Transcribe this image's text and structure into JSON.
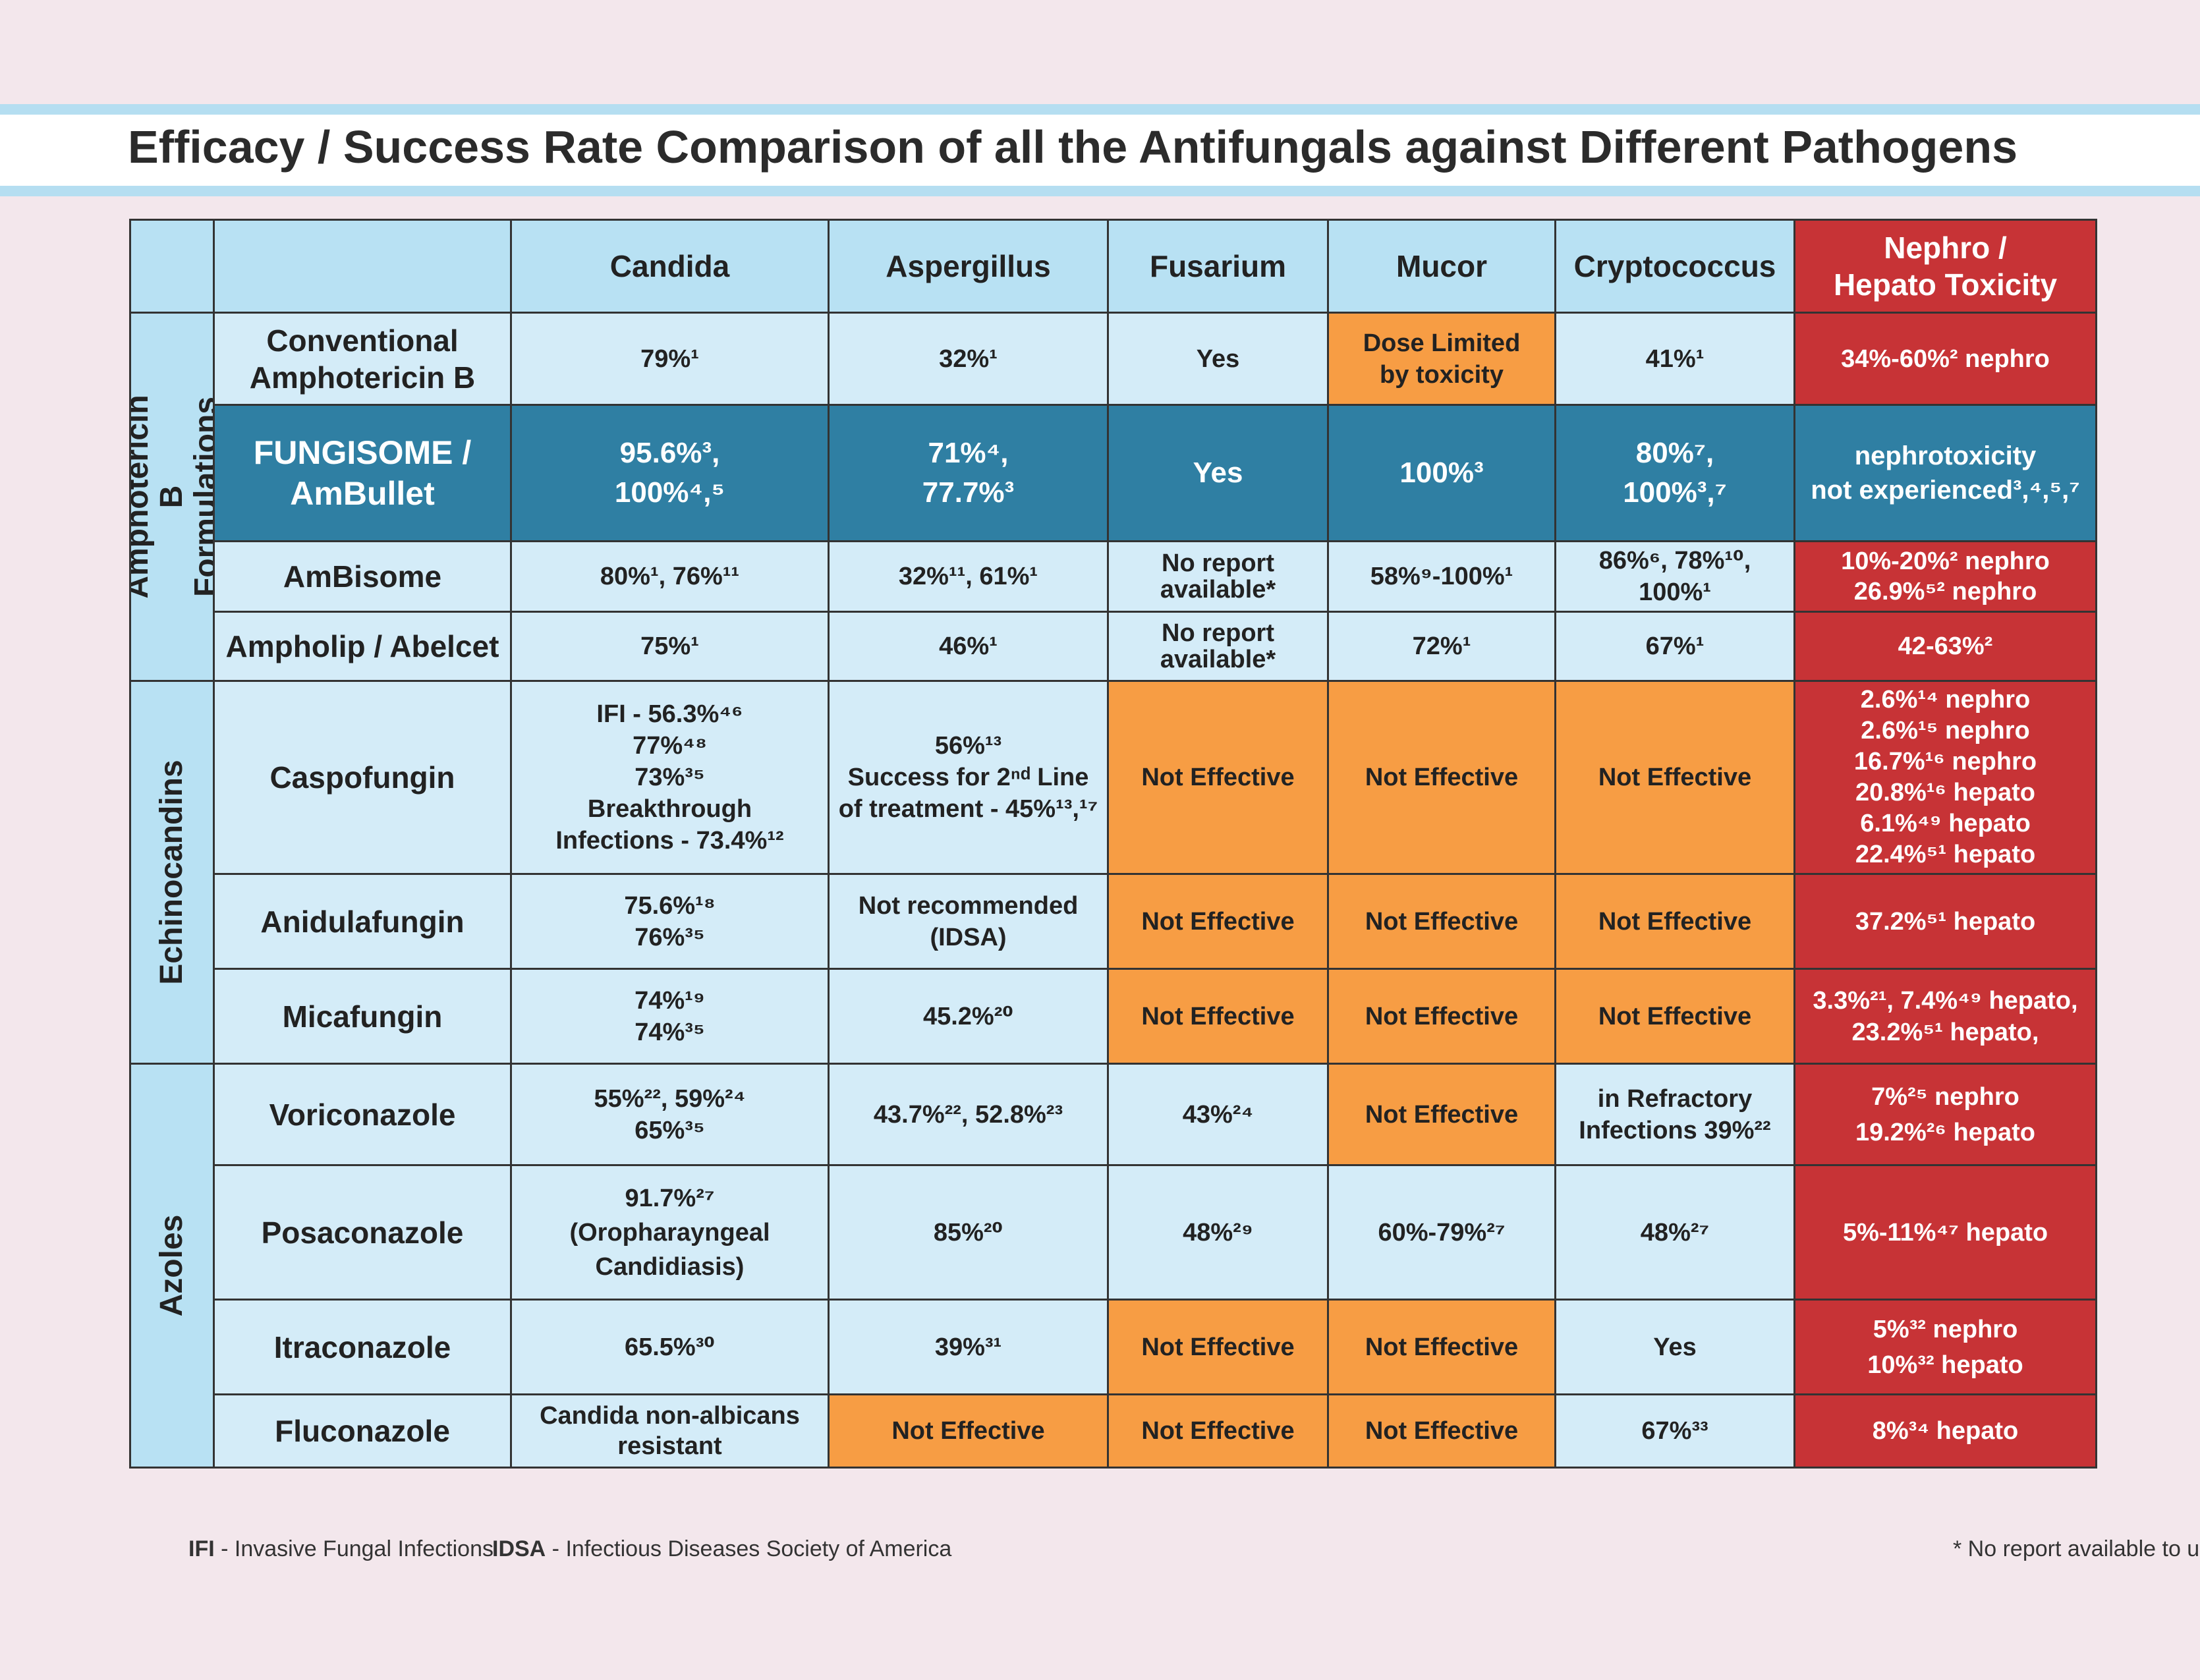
{
  "title": "Efficacy / Success Rate Comparison of all the Antifungals against Different Pathogens",
  "header": {
    "columns": [
      "Candida",
      "Aspergillus",
      "Fusarium",
      "Mucor",
      "Cryptococcus",
      "Nephro /\nHepato Toxicity"
    ]
  },
  "groups": {
    "ampho": "Amphotericin B\nFormulations",
    "echino": "Echinocandins",
    "azoles": "Azoles"
  },
  "rows": [
    {
      "drug": "Conventional\nAmphotericin B",
      "cells": [
        "79%¹",
        "32%¹",
        "Yes",
        "Dose Limited\nby toxicity",
        "41%¹",
        "34%-60%² nephro"
      ]
    },
    {
      "drug": "FUNGISOME /\nAmBullet",
      "cells": [
        "95.6%³,\n100%⁴,⁵",
        "71%⁴,\n77.7%³",
        "Yes",
        "100%³",
        "80%⁷,\n100%³,⁷",
        "nephrotoxicity\nnot experienced³,⁴,⁵,⁷"
      ]
    },
    {
      "drug": "AmBisome",
      "cells": [
        "80%¹, 76%¹¹",
        "32%¹¹, 61%¹",
        "No report\navailable*",
        "58%⁹-100%¹",
        "86%⁶, 78%¹⁰, 100%¹",
        "10%-20%² nephro\n26.9%⁵² nephro"
      ]
    },
    {
      "drug": "Ampholip / Abelcet",
      "cells": [
        "75%¹",
        "46%¹",
        "No report\navailable*",
        "72%¹",
        "67%¹",
        "42-63%²"
      ]
    },
    {
      "drug": "Caspofungin",
      "cells": [
        "IFI - 56.3%⁴⁶\n77%⁴⁸\n73%³⁵\nBreakthrough\nInfections - 73.4%¹²",
        "56%¹³\nSuccess for 2ⁿᵈ Line\nof treatment - 45%¹³,¹⁷",
        "Not Effective",
        "Not Effective",
        "Not Effective",
        "2.6%¹⁴ nephro\n2.6%¹⁵ nephro\n16.7%¹⁶ nephro\n20.8%¹⁶ hepato\n6.1%⁴⁹ hepato\n22.4%⁵¹ hepato"
      ]
    },
    {
      "drug": "Anidulafungin",
      "cells": [
        "75.6%¹⁸\n76%³⁵",
        "Not recommended\n(IDSA)",
        "Not Effective",
        "Not Effective",
        "Not Effective",
        "37.2%⁵¹ hepato"
      ]
    },
    {
      "drug": "Micafungin",
      "cells": [
        "74%¹⁹\n74%³⁵",
        "45.2%²⁰",
        "Not Effective",
        "Not Effective",
        "Not Effective",
        "3.3%²¹, 7.4%⁴⁹ hepato,\n23.2%⁵¹ hepato,"
      ]
    },
    {
      "drug": "Voriconazole",
      "cells": [
        "55%²², 59%²⁴\n65%³⁵",
        "43.7%²², 52.8%²³",
        "43%²⁴",
        "Not Effective",
        "in Refractory\nInfections 39%²²",
        "7%²⁵ nephro\n19.2%²⁶ hepato"
      ]
    },
    {
      "drug": "Posaconazole",
      "cells": [
        "91.7%²⁷\n(Oropharayngeal\nCandidiasis)",
        "85%²⁰",
        "48%²⁹",
        "60%-79%²⁷",
        "48%²⁷",
        "5%-11%⁴⁷ hepato"
      ]
    },
    {
      "drug": "Itraconazole",
      "cells": [
        "65.5%³⁰",
        "39%³¹",
        "Not Effective",
        "Not Effective",
        "Yes",
        "5%³² nephro\n10%³² hepato"
      ]
    },
    {
      "drug": "Fluconazole",
      "cells": [
        "Candida non-albicans\nresistant",
        "Not Effective",
        "Not Effective",
        "Not Effective",
        "67%³³",
        "8%³⁴ hepato"
      ]
    }
  ],
  "footnotes": {
    "ifi_abbr": "IFI",
    "ifi_text": " - Invasive Fungal Infections",
    "idsa_abbr": "IDSA",
    "idsa_text": " - Infectious Diseases Society of America",
    "note": "* No report  available to us"
  },
  "colors": {
    "light_blue": "#d4ecf8",
    "header_blue": "#b8e1f3",
    "highlight_blue": "#2f7fa3",
    "not_effective_orange": "#f79d44",
    "toxicity_red": "#c73336",
    "background": "#f3e7ec"
  }
}
